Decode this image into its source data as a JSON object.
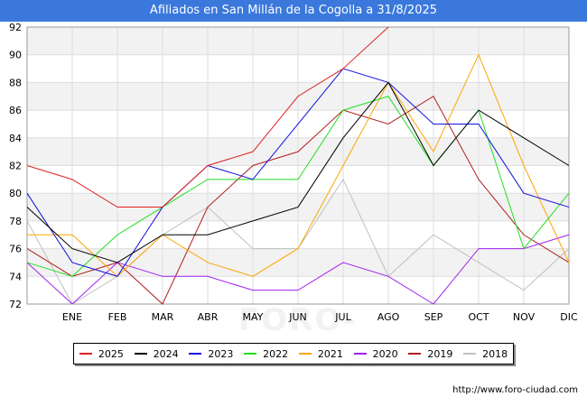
{
  "header": {
    "title": "Afiliados en San Millán de la Cogolla a 31/8/2025"
  },
  "footer": {
    "source": "http://www.foro-ciudad.com"
  },
  "watermark": "FORO-CIUDAD.COM",
  "chart_data": {
    "type": "line",
    "title": "Afiliados en San Millán de la Cogolla a 31/8/2025",
    "xlabel": "",
    "ylabel": "",
    "categories": [
      "",
      "ENE",
      "FEB",
      "MAR",
      "ABR",
      "MAY",
      "JUN",
      "JUL",
      "AGO",
      "SEP",
      "OCT",
      "NOV",
      "DIC"
    ],
    "ylim": [
      72,
      92
    ],
    "yticks": [
      72,
      74,
      76,
      78,
      80,
      82,
      84,
      86,
      88,
      90,
      92
    ],
    "grid": true,
    "legend_position": "bottom",
    "series": [
      {
        "name": "2025",
        "color": "#e02020",
        "values": [
          82,
          81,
          79,
          79,
          82,
          83,
          87,
          89,
          92,
          null,
          null,
          null,
          null
        ]
      },
      {
        "name": "2024",
        "color": "#000000",
        "values": [
          79,
          76,
          75,
          77,
          77,
          78,
          79,
          84,
          88,
          82,
          86,
          84,
          82
        ]
      },
      {
        "name": "2023",
        "color": "#1010e0",
        "values": [
          80,
          75,
          74,
          79,
          82,
          81,
          85,
          89,
          88,
          85,
          85,
          80,
          79
        ]
      },
      {
        "name": "2022",
        "color": "#20e020",
        "values": [
          75,
          74,
          77,
          79,
          81,
          81,
          81,
          86,
          87,
          82,
          86,
          76,
          80
        ]
      },
      {
        "name": "2021",
        "color": "#ffa500",
        "values": [
          77,
          77,
          74,
          77,
          75,
          74,
          76,
          82,
          88,
          83,
          90,
          82,
          75
        ]
      },
      {
        "name": "2020",
        "color": "#a020f0",
        "values": [
          75,
          72,
          75,
          74,
          74,
          73,
          73,
          75,
          74,
          72,
          76,
          76,
          77
        ]
      },
      {
        "name": "2019",
        "color": "#b02020",
        "values": [
          76,
          74,
          75,
          72,
          79,
          82,
          83,
          86,
          85,
          87,
          81,
          77,
          75
        ]
      },
      {
        "name": "2018",
        "color": "#c0c0c0",
        "values": [
          78,
          72,
          74,
          77,
          79,
          76,
          76,
          81,
          74,
          77,
          75,
          73,
          76
        ]
      }
    ]
  }
}
